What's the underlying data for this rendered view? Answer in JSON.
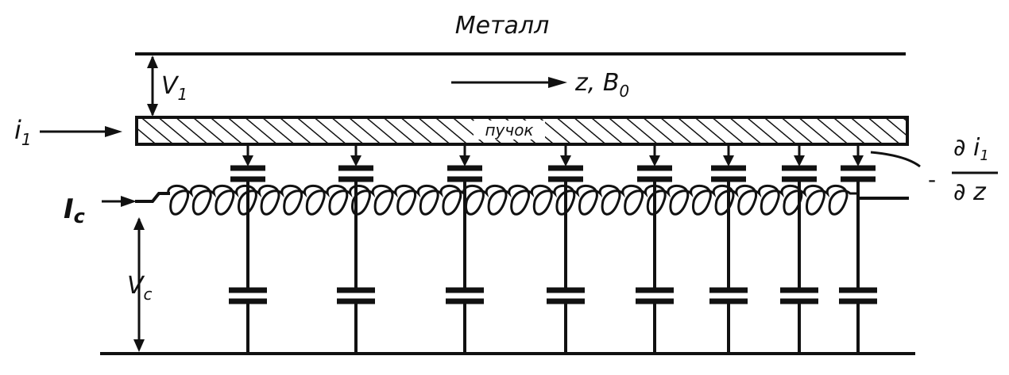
{
  "labels": {
    "metal": "Металл",
    "v1": "V",
    "v1_sub": "1",
    "z_b0": "z, B",
    "z_b0_sub": "0",
    "i1": "i",
    "i1_sub": "1",
    "beam": "пучок",
    "ic": "I",
    "ic_sub": "c",
    "vc": "V",
    "vc_sub": "c",
    "deriv_num": "∂ i",
    "deriv_num_sub": "1",
    "deriv_den": "∂ z",
    "deriv_sign": "-"
  },
  "colors": {
    "ink": "#111111",
    "paper": "#ffffff"
  },
  "structure": {
    "coupling_taps": 8,
    "shunt_capacitors": 8,
    "coil_turns": 30
  }
}
